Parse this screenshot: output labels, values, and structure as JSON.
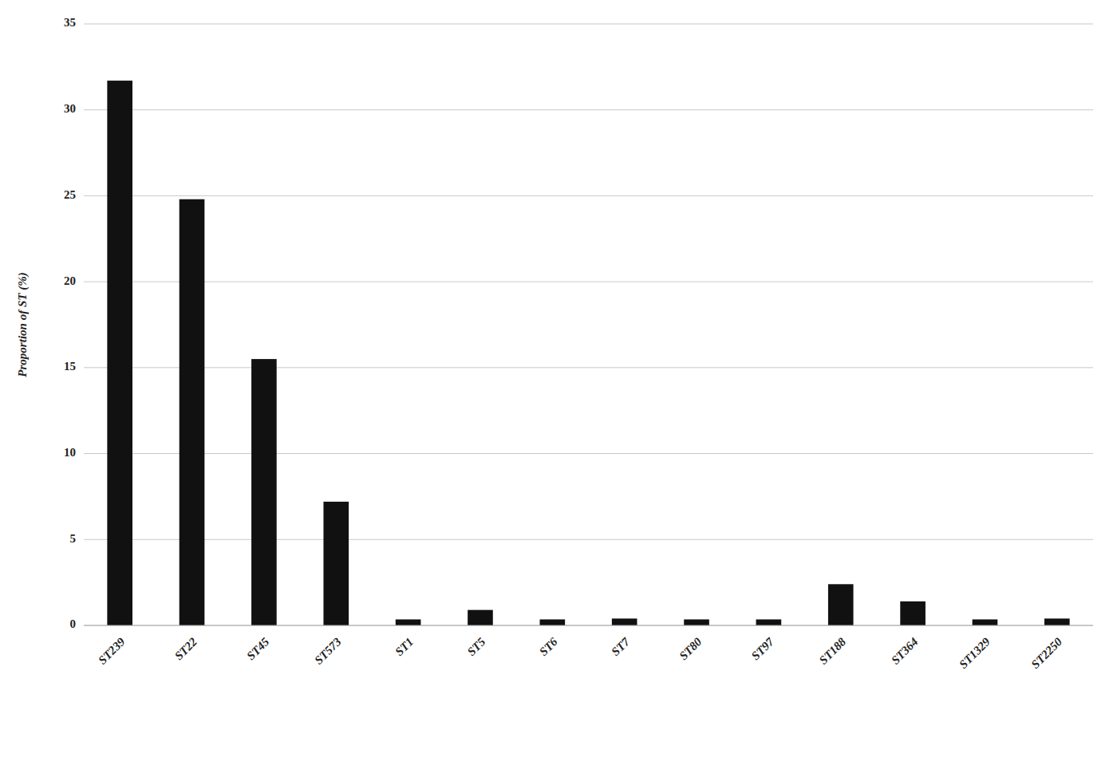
{
  "chart_data": {
    "type": "bar",
    "categories": [
      "ST239",
      "ST22",
      "ST45",
      "ST573",
      "ST1",
      "ST5",
      "ST6",
      "ST7",
      "ST80",
      "ST97",
      "ST188",
      "ST364",
      "ST1329",
      "ST2250"
    ],
    "values": [
      31.7,
      24.8,
      15.5,
      7.2,
      0.35,
      0.9,
      0.35,
      0.4,
      0.35,
      0.35,
      2.4,
      1.4,
      0.35,
      0.4
    ],
    "color": "#111111",
    "ylabel": "Proportion of ST (%)",
    "ylim": [
      0,
      35
    ],
    "yticks": [
      0,
      5,
      10,
      15,
      20,
      25,
      30,
      35
    ],
    "grid": true
  }
}
